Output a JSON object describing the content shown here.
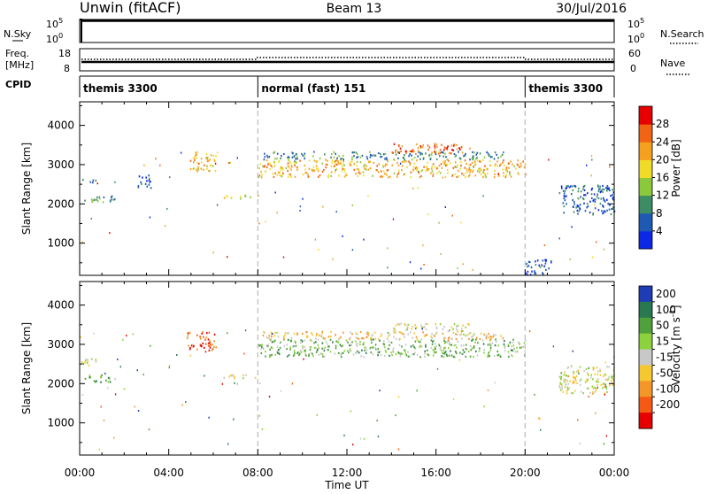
{
  "header": {
    "station": "Unwin (fitACF)",
    "beam": "Beam 13",
    "date": "30/Jul/2016"
  },
  "top_panels": {
    "nsky_label": "N.Sky",
    "nsky_ticks": [
      "10^5",
      "10^0"
    ],
    "nsearch_label": "N.Search",
    "nsearch_ticks": [
      "10^5",
      "10^0"
    ],
    "freq_label_1": "Freq.",
    "freq_label_2": "[MHz]",
    "freq_ticks": [
      "18",
      "8"
    ],
    "nave_label": "Nave",
    "nave_ticks": [
      "60",
      "0"
    ],
    "cpid_label": "CPID",
    "cpid_segments": [
      {
        "label": "themis 3300",
        "start": 0,
        "end": 8
      },
      {
        "label": "normal (fast) 151",
        "start": 8,
        "end": 20
      },
      {
        "label": "themis 3300",
        "start": 20,
        "end": 24
      }
    ]
  },
  "chart_data": [
    {
      "type": "heatmap",
      "title": "",
      "ylabel": "Slant Range [km]",
      "xlabel": "",
      "x_range": [
        0,
        24
      ],
      "ylim": [
        180,
        4600
      ],
      "yticks": [
        1000,
        2000,
        3000,
        4000
      ],
      "colorbar": {
        "label": "Power [dB]",
        "ticks": [
          "4",
          "8",
          "12",
          "16",
          "20",
          "24",
          "28"
        ],
        "colors": [
          "#0a28e6",
          "#1e5ab4",
          "#3c8c64",
          "#8cc83c",
          "#f0dc28",
          "#f5a01e",
          "#f06414",
          "#e60000"
        ]
      },
      "echo_regions": [
        {
          "t": [
            0.0,
            0.7
          ],
          "r": [
            2550,
            2650
          ],
          "level": 0.2
        },
        {
          "t": [
            0.2,
            1.6
          ],
          "r": [
            2050,
            2250
          ],
          "level": 0.35
        },
        {
          "t": [
            2.6,
            3.2
          ],
          "r": [
            2350,
            2750
          ],
          "level": 0.15
        },
        {
          "t": [
            4.8,
            6.1
          ],
          "r": [
            2850,
            3350
          ],
          "level": 0.6
        },
        {
          "t": [
            6.4,
            8.0
          ],
          "r": [
            2150,
            2250
          ],
          "level": 0.55
        },
        {
          "t": [
            8.0,
            20.0
          ],
          "r": [
            2700,
            3150
          ],
          "level": 0.65
        },
        {
          "t": [
            8.2,
            19.0
          ],
          "r": [
            3150,
            3350
          ],
          "level": 0.3
        },
        {
          "t": [
            14.0,
            17.5
          ],
          "r": [
            3300,
            3550
          ],
          "level": 0.8
        },
        {
          "t": [
            20.0,
            21.2
          ],
          "r": [
            220,
            600
          ],
          "level": 0.1
        },
        {
          "t": [
            21.5,
            24.0
          ],
          "r": [
            1750,
            2500
          ],
          "level": 0.2
        }
      ]
    },
    {
      "type": "heatmap",
      "title": "",
      "ylabel": "Slant Range [km]",
      "xlabel": "Time UT",
      "x_range": [
        0,
        24
      ],
      "xticks": [
        "00:00",
        "04:00",
        "08:00",
        "12:00",
        "16:00",
        "20:00",
        "00:00"
      ],
      "ylim": [
        180,
        4600
      ],
      "yticks": [
        1000,
        2000,
        3000,
        4000
      ],
      "colorbar": {
        "label": "Velocity [m s^-1]",
        "ticks": [
          "200",
          "100",
          "50",
          "15",
          "-15",
          "-50",
          "-100",
          "-200"
        ],
        "colors": [
          "#1e3cb4",
          "#287850",
          "#50a03c",
          "#8cd23c",
          "#c8c8c8",
          "#f5c832",
          "#f59628",
          "#f55a14",
          "#e60000"
        ]
      },
      "echo_regions": [
        {
          "t": [
            0.0,
            0.8
          ],
          "r": [
            2450,
            2650
          ],
          "level": 0.45
        },
        {
          "t": [
            0.2,
            1.6
          ],
          "r": [
            2050,
            2250
          ],
          "level": 0.3
        },
        {
          "t": [
            4.8,
            6.1
          ],
          "r": [
            2850,
            3350
          ],
          "level": 0.85
        },
        {
          "t": [
            6.4,
            8.0
          ],
          "r": [
            2150,
            2250
          ],
          "level": 0.45
        },
        {
          "t": [
            8.0,
            20.0
          ],
          "r": [
            2700,
            3150
          ],
          "level": 0.35
        },
        {
          "t": [
            8.2,
            19.0
          ],
          "r": [
            3150,
            3350
          ],
          "level": 0.6
        },
        {
          "t": [
            14.0,
            17.5
          ],
          "r": [
            3350,
            3550
          ],
          "level": 0.5
        },
        {
          "t": [
            21.5,
            24.0
          ],
          "r": [
            1750,
            2500
          ],
          "level": 0.5
        }
      ]
    }
  ]
}
